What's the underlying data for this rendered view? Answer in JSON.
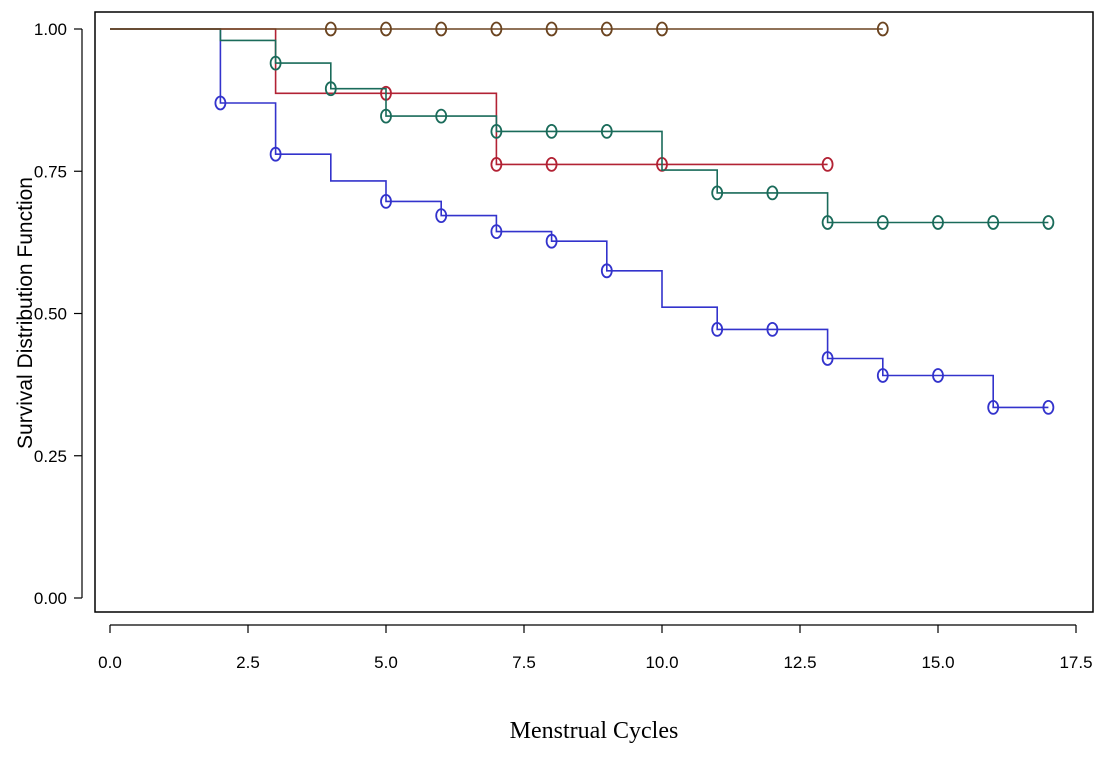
{
  "chart_data": {
    "type": "line",
    "subtype": "kaplan-meier survival step curves with censoring markers",
    "title": "",
    "xlabel": "Menstrual Cycles",
    "ylabel": "Survival Distribution Function",
    "xlim": [
      0,
      17.5
    ],
    "ylim": [
      0,
      1
    ],
    "x_ticks": [
      "0.0",
      "2.5",
      "5.0",
      "7.5",
      "10.0",
      "12.5",
      "15.0",
      "17.5"
    ],
    "y_ticks": [
      "0.00",
      "0.25",
      "0.50",
      "0.75",
      "1.00"
    ],
    "grid": false,
    "legend": "none",
    "series": [
      {
        "color": "#3333cc",
        "steps": [
          [
            0,
            1.0
          ],
          [
            2,
            0.87
          ],
          [
            3,
            0.78
          ],
          [
            4,
            0.733
          ],
          [
            5,
            0.697
          ],
          [
            6,
            0.672
          ],
          [
            7,
            0.644
          ],
          [
            8,
            0.627
          ],
          [
            9,
            0.575
          ],
          [
            10,
            0.511
          ],
          [
            11,
            0.472
          ],
          [
            13,
            0.421
          ],
          [
            14,
            0.391
          ],
          [
            16,
            0.335
          ],
          [
            17,
            0.335
          ]
        ],
        "censored": [
          [
            2,
            0.87
          ],
          [
            3,
            0.78
          ],
          [
            5,
            0.697
          ],
          [
            6,
            0.672
          ],
          [
            7,
            0.644
          ],
          [
            8,
            0.627
          ],
          [
            9,
            0.575
          ],
          [
            11,
            0.472
          ],
          [
            12,
            0.472
          ],
          [
            13,
            0.421
          ],
          [
            14,
            0.391
          ],
          [
            15,
            0.391
          ],
          [
            16,
            0.335
          ],
          [
            17,
            0.335
          ]
        ]
      },
      {
        "color": "#b22234",
        "steps": [
          [
            0,
            1.0
          ],
          [
            3,
            0.887
          ],
          [
            7,
            0.762
          ],
          [
            13,
            0.762
          ]
        ],
        "censored": [
          [
            5,
            0.887
          ],
          [
            7,
            0.762
          ],
          [
            8,
            0.762
          ],
          [
            10,
            0.762
          ],
          [
            13,
            0.762
          ]
        ]
      },
      {
        "color": "#1a6b5a",
        "steps": [
          [
            0,
            1.0
          ],
          [
            2,
            0.98
          ],
          [
            3,
            0.94
          ],
          [
            4,
            0.895
          ],
          [
            5,
            0.847
          ],
          [
            7,
            0.82
          ],
          [
            10,
            0.752
          ],
          [
            11,
            0.712
          ],
          [
            13,
            0.66
          ],
          [
            17,
            0.66
          ]
        ],
        "censored": [
          [
            3,
            0.94
          ],
          [
            4,
            0.895
          ],
          [
            5,
            0.847
          ],
          [
            6,
            0.847
          ],
          [
            7,
            0.82
          ],
          [
            8,
            0.82
          ],
          [
            9,
            0.82
          ],
          [
            11,
            0.712
          ],
          [
            12,
            0.712
          ],
          [
            13,
            0.66
          ],
          [
            14,
            0.66
          ],
          [
            15,
            0.66
          ],
          [
            16,
            0.66
          ],
          [
            17,
            0.66
          ]
        ]
      },
      {
        "color": "#6b4420",
        "steps": [
          [
            0,
            1.0
          ],
          [
            14,
            1.0
          ]
        ],
        "censored": [
          [
            4,
            1.0
          ],
          [
            5,
            1.0
          ],
          [
            6,
            1.0
          ],
          [
            7,
            1.0
          ],
          [
            8,
            1.0
          ],
          [
            9,
            1.0
          ],
          [
            10,
            1.0
          ],
          [
            14,
            1.0
          ]
        ]
      }
    ]
  }
}
